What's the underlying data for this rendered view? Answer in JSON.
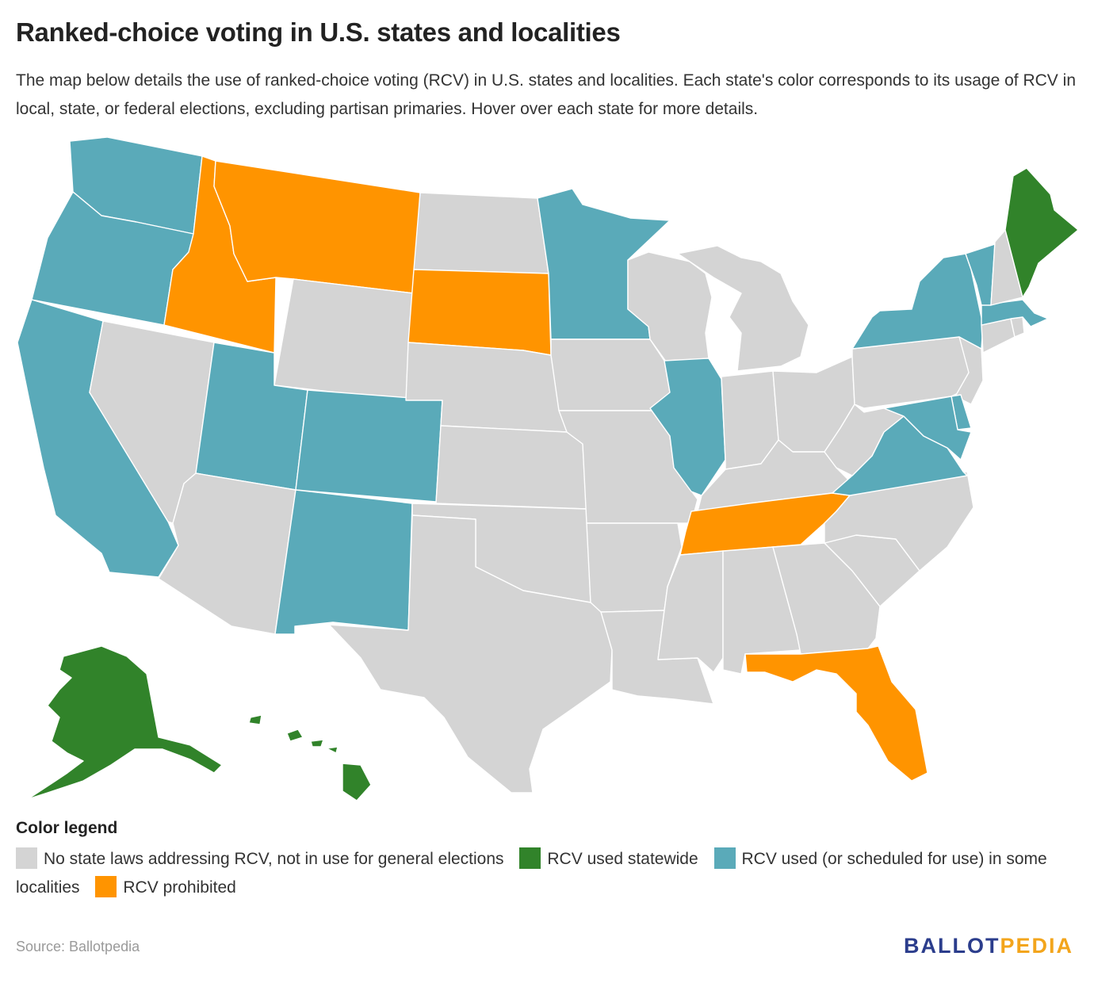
{
  "header": {
    "title": "Ranked-choice voting in U.S. states and localities",
    "subtitle": "The map below details the use of ranked-choice voting (RCV) in U.S. states and localities. Each state's color corresponds to its usage of RCV in local, state, or federal elections, excluding partisan primaries. Hover over each state for more details."
  },
  "colors": {
    "none": "#d4d4d4",
    "statewide": "#31832a",
    "localities": "#5aaab9",
    "prohibited": "#ff9400"
  },
  "legend": {
    "title": "Color legend",
    "items": [
      {
        "key": "none",
        "label": "No state laws addressing RCV, not in use for general elections"
      },
      {
        "key": "statewide",
        "label": "RCV used statewide"
      },
      {
        "key": "localities",
        "label": "RCV used (or scheduled for use) in some localities"
      },
      {
        "key": "prohibited",
        "label": "RCV prohibited"
      }
    ]
  },
  "states": {
    "WA": "localities",
    "OR": "localities",
    "CA": "localities",
    "NV": "none",
    "ID": "prohibited",
    "MT": "prohibited",
    "WY": "none",
    "UT": "localities",
    "AZ": "none",
    "CO": "localities",
    "NM": "localities",
    "ND": "none",
    "SD": "prohibited",
    "NE": "none",
    "KS": "none",
    "OK": "none",
    "TX": "none",
    "MN": "localities",
    "IA": "none",
    "MO": "none",
    "AR": "none",
    "LA": "none",
    "WI": "none",
    "IL": "localities",
    "MI": "none",
    "IN": "none",
    "OH": "none",
    "KY": "none",
    "TN": "prohibited",
    "MS": "none",
    "AL": "none",
    "GA": "none",
    "FL": "prohibited",
    "SC": "none",
    "NC": "none",
    "VA": "localities",
    "WV": "none",
    "PA": "none",
    "NY": "localities",
    "VT": "localities",
    "NH": "none",
    "ME": "statewide",
    "MA": "localities",
    "RI": "none",
    "CT": "none",
    "NJ": "none",
    "DE": "localities",
    "MD": "localities",
    "AK": "statewide",
    "HI": "statewide"
  },
  "footer": {
    "source": "Source: Ballotpedia",
    "logo_part1": "BALLOT",
    "logo_part2": "PEDIA"
  }
}
